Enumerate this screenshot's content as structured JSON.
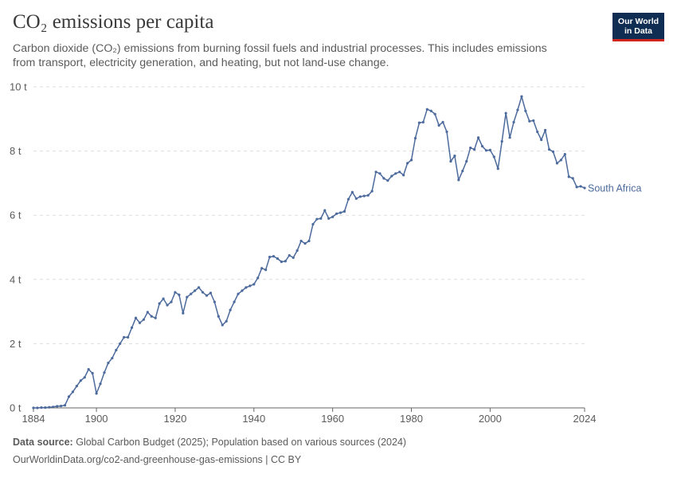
{
  "header": {
    "title": "CO₂ emissions per capita",
    "subtitle": "Carbon dioxide (CO₂) emissions from burning fossil fuels and industrial processes. This includes emissions from transport, electricity generation, and heating, but not land-use change.",
    "logo_line1": "Our World",
    "logo_line2": "in Data"
  },
  "footer": {
    "source_label": "Data source:",
    "source_text": "Global Carbon Budget (2025); Population based on various sources (2024)",
    "url_text": "OurWorldinData.org/co2-and-greenhouse-gas-emissions | CC BY"
  },
  "colors": {
    "series": "#4c6a9c",
    "grid": "#dddddd",
    "axis": "#666666",
    "text": "#5b5b5b",
    "logo_bg": "#0f2d52",
    "logo_accent": "#ce261e"
  },
  "chart_data": {
    "type": "line",
    "title": "CO₂ emissions per capita",
    "xlabel": "",
    "ylabel": "",
    "xlim": [
      1884,
      2024
    ],
    "ylim": [
      0,
      10
    ],
    "x_ticks": [
      "1884",
      "1900",
      "1920",
      "1940",
      "1960",
      "1980",
      "2000",
      "2024"
    ],
    "x_tick_values": [
      1884,
      1900,
      1920,
      1940,
      1960,
      1980,
      2000,
      2024
    ],
    "y_ticks": [
      "0 t",
      "2 t",
      "4 t",
      "6 t",
      "8 t",
      "10 t"
    ],
    "y_tick_values": [
      0,
      2,
      4,
      6,
      8,
      10
    ],
    "grid": "horizontal dashed",
    "legend": "end-of-line label",
    "series": [
      {
        "name": "South Africa",
        "x": [
          1884,
          1885,
          1886,
          1887,
          1888,
          1889,
          1890,
          1891,
          1892,
          1893,
          1894,
          1895,
          1896,
          1897,
          1898,
          1899,
          1900,
          1901,
          1902,
          1903,
          1904,
          1905,
          1906,
          1907,
          1908,
          1909,
          1910,
          1911,
          1912,
          1913,
          1914,
          1915,
          1916,
          1917,
          1918,
          1919,
          1920,
          1921,
          1922,
          1923,
          1924,
          1925,
          1926,
          1927,
          1928,
          1929,
          1930,
          1931,
          1932,
          1933,
          1934,
          1935,
          1936,
          1937,
          1938,
          1939,
          1940,
          1941,
          1942,
          1943,
          1944,
          1945,
          1946,
          1947,
          1948,
          1949,
          1950,
          1951,
          1952,
          1953,
          1954,
          1955,
          1956,
          1957,
          1958,
          1959,
          1960,
          1961,
          1962,
          1963,
          1964,
          1965,
          1966,
          1967,
          1968,
          1969,
          1970,
          1971,
          1972,
          1973,
          1974,
          1975,
          1976,
          1977,
          1978,
          1979,
          1980,
          1981,
          1982,
          1983,
          1984,
          1985,
          1986,
          1987,
          1988,
          1989,
          1990,
          1991,
          1992,
          1993,
          1994,
          1995,
          1996,
          1997,
          1998,
          1999,
          2000,
          2001,
          2002,
          2003,
          2004,
          2005,
          2006,
          2007,
          2008,
          2009,
          2010,
          2011,
          2012,
          2013,
          2014,
          2015,
          2016,
          2017,
          2018,
          2019,
          2020,
          2021,
          2022,
          2023,
          2024
        ],
        "y": [
          0.0,
          0.0,
          0.01,
          0.01,
          0.02,
          0.03,
          0.05,
          0.06,
          0.08,
          0.35,
          0.5,
          0.68,
          0.85,
          0.95,
          1.2,
          1.08,
          0.45,
          0.75,
          1.1,
          1.4,
          1.55,
          1.8,
          2.0,
          2.2,
          2.2,
          2.5,
          2.8,
          2.65,
          2.75,
          2.98,
          2.85,
          2.8,
          3.25,
          3.4,
          3.2,
          3.3,
          3.6,
          3.52,
          2.95,
          3.45,
          3.55,
          3.65,
          3.75,
          3.6,
          3.5,
          3.58,
          3.3,
          2.85,
          2.58,
          2.7,
          3.05,
          3.3,
          3.55,
          3.65,
          3.75,
          3.8,
          3.85,
          4.05,
          4.35,
          4.3,
          4.7,
          4.72,
          4.65,
          4.55,
          4.57,
          4.75,
          4.68,
          4.9,
          5.2,
          5.12,
          5.2,
          5.72,
          5.88,
          5.9,
          6.15,
          5.9,
          5.95,
          6.05,
          6.08,
          6.12,
          6.5,
          6.72,
          6.52,
          6.58,
          6.6,
          6.62,
          6.75,
          7.35,
          7.3,
          7.15,
          7.08,
          7.22,
          7.3,
          7.35,
          7.25,
          7.62,
          7.72,
          8.4,
          8.88,
          8.9,
          9.3,
          9.25,
          9.15,
          8.8,
          8.9,
          8.6,
          7.68,
          7.85,
          7.1,
          7.38,
          7.68,
          8.1,
          8.05,
          8.42,
          8.15,
          8.02,
          8.03,
          7.82,
          7.45,
          8.3,
          9.18,
          8.42,
          8.9,
          9.28,
          9.7,
          9.25,
          8.93,
          8.95,
          8.6,
          8.35,
          8.65,
          8.05,
          7.98,
          7.62,
          7.72,
          7.9,
          7.2,
          7.15,
          6.88,
          6.9,
          6.85
        ]
      }
    ]
  }
}
